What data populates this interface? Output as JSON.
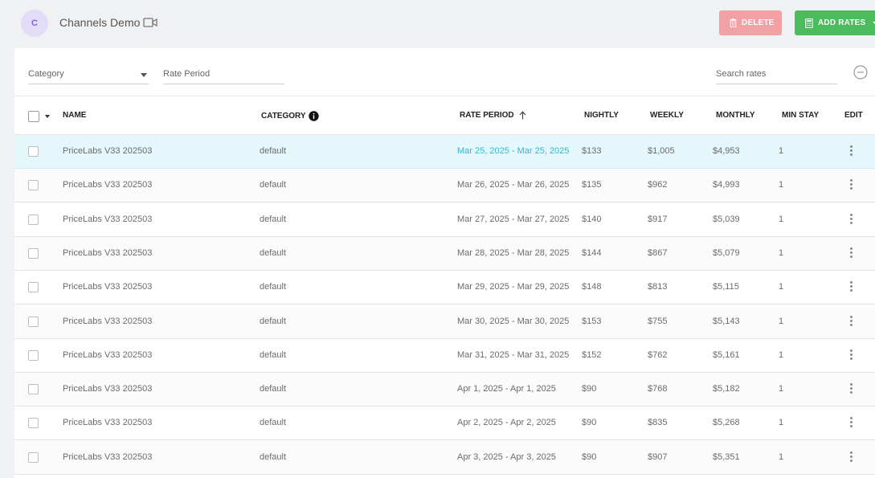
{
  "header": {
    "avatar_letter": "C",
    "channel_name": "Channels Demo",
    "delete_label": "DELETE",
    "add_rates_label": "ADD RATES",
    "colors": {
      "delete": "#f1a0a3",
      "add": "#4cbb5b",
      "accent": "#39b6d3"
    }
  },
  "filters": {
    "category_label": "Category",
    "rate_period_label": "Rate Period",
    "search_placeholder": "Search rates"
  },
  "table": {
    "columns": {
      "name": "NAME",
      "category": "CATEGORY",
      "rate_period": "RATE PERIOD",
      "nightly": "NIGHTLY",
      "weekly": "WEEKLY",
      "monthly": "MONTHLY",
      "min_stay": "MIN STAY",
      "edit": "EDIT"
    },
    "sort": {
      "column": "rate_period",
      "direction": "ascending"
    },
    "rows": [
      {
        "name": "PriceLabs V33 202503",
        "category": "default",
        "period": "Mar 25, 2025 - Mar 25, 2025",
        "nightly": "$133",
        "weekly": "$1,005",
        "monthly": "$4,953",
        "min_stay": "1",
        "selected": true
      },
      {
        "name": "PriceLabs V33 202503",
        "category": "default",
        "period": "Mar 26, 2025 - Mar 26, 2025",
        "nightly": "$135",
        "weekly": "$962",
        "monthly": "$4,993",
        "min_stay": "1"
      },
      {
        "name": "PriceLabs V33 202503",
        "category": "default",
        "period": "Mar 27, 2025 - Mar 27, 2025",
        "nightly": "$140",
        "weekly": "$917",
        "monthly": "$5,039",
        "min_stay": "1"
      },
      {
        "name": "PriceLabs V33 202503",
        "category": "default",
        "period": "Mar 28, 2025 - Mar 28, 2025",
        "nightly": "$144",
        "weekly": "$867",
        "monthly": "$5,079",
        "min_stay": "1"
      },
      {
        "name": "PriceLabs V33 202503",
        "category": "default",
        "period": "Mar 29, 2025 - Mar 29, 2025",
        "nightly": "$148",
        "weekly": "$813",
        "monthly": "$5,115",
        "min_stay": "1"
      },
      {
        "name": "PriceLabs V33 202503",
        "category": "default",
        "period": "Mar 30, 2025 - Mar 30, 2025",
        "nightly": "$153",
        "weekly": "$755",
        "monthly": "$5,143",
        "min_stay": "1"
      },
      {
        "name": "PriceLabs V33 202503",
        "category": "default",
        "period": "Mar 31, 2025 - Mar 31, 2025",
        "nightly": "$152",
        "weekly": "$762",
        "monthly": "$5,161",
        "min_stay": "1"
      },
      {
        "name": "PriceLabs V33 202503",
        "category": "default",
        "period": "Apr 1, 2025 - Apr 1, 2025",
        "nightly": "$90",
        "weekly": "$768",
        "monthly": "$5,182",
        "min_stay": "1"
      },
      {
        "name": "PriceLabs V33 202503",
        "category": "default",
        "period": "Apr 2, 2025 - Apr 2, 2025",
        "nightly": "$90",
        "weekly": "$835",
        "monthly": "$5,268",
        "min_stay": "1"
      },
      {
        "name": "PriceLabs V33 202503",
        "category": "default",
        "period": "Apr 3, 2025 - Apr 3, 2025",
        "nightly": "$90",
        "weekly": "$907",
        "monthly": "$5,351",
        "min_stay": "1"
      }
    ]
  }
}
